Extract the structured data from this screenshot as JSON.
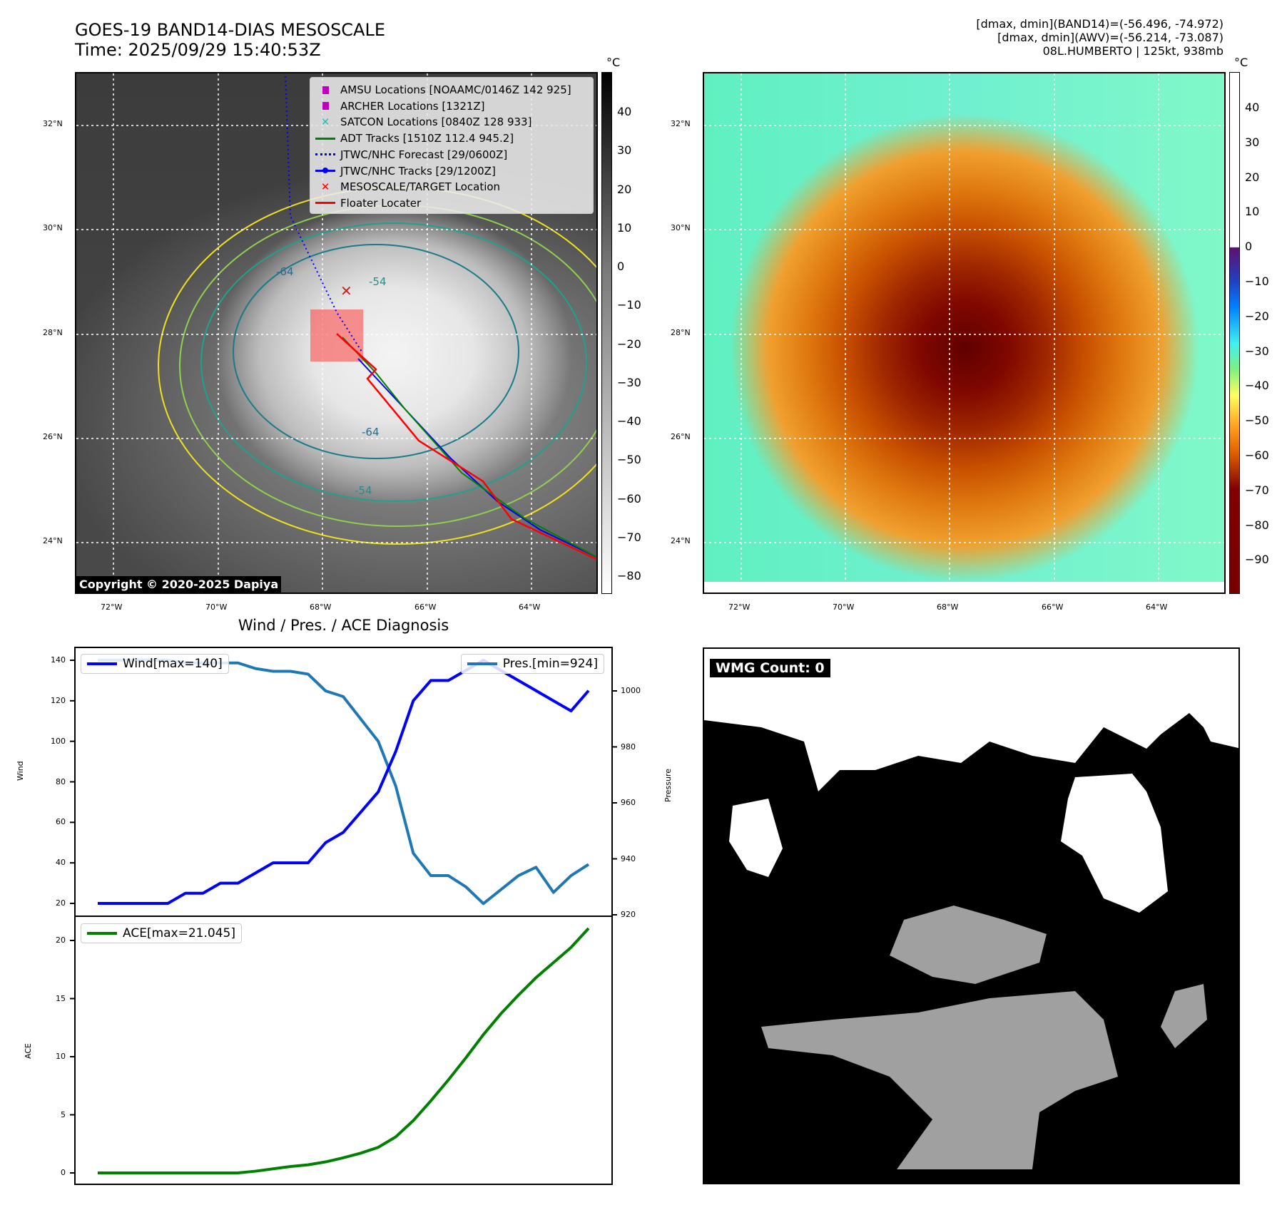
{
  "header": {
    "title_line1": "GOES-19 BAND14-DIAS MESOSCALE",
    "title_line2": "Time: 2025/09/29 15:40:53Z",
    "info_line1": "[dmax, dmin](BAND14)=(-56.496, -74.972)",
    "info_line2": "[dmax, dmin](AWV)=(-56.214, -73.087)",
    "info_line3": "08L.HUMBERTO | 125kt, 938mb"
  },
  "maps": {
    "lat_labels": [
      "32°N",
      "30°N",
      "28°N",
      "26°N",
      "24°N"
    ],
    "lon_labels": [
      "72°W",
      "70°W",
      "68°W",
      "66°W",
      "64°W"
    ],
    "copyright": "Copyright © 2020-2025 Dapiya",
    "contour_labels": [
      "-64",
      "-54",
      "-64",
      "-54"
    ]
  },
  "legend": [
    {
      "label": "AMSU Locations [NOAAMC/0146Z 142 925]",
      "symbol": "square",
      "color": "#c000c0"
    },
    {
      "label": "ARCHER Locations [1321Z]",
      "symbol": "square",
      "color": "#c000c0"
    },
    {
      "label": "SATCON Locations [0840Z 128 933]",
      "symbol": "x",
      "color": "#20c0c0"
    },
    {
      "label": "ADT Tracks [1510Z 112.4 945.2]",
      "symbol": "line",
      "color": "#008000"
    },
    {
      "label": "JTWC/NHC Forecast [29/0600Z]",
      "symbol": "dotted",
      "color": "#0000ff"
    },
    {
      "label": "JTWC/NHC Tracks [29/1200Z]",
      "symbol": "line-dot",
      "color": "#0000ff"
    },
    {
      "label": "MESOSCALE/TARGET Location",
      "symbol": "x",
      "color": "#ff0000"
    },
    {
      "label": "Floater Locater",
      "symbol": "line",
      "color": "#ff0000"
    }
  ],
  "colorbar_left": {
    "unit": "°C",
    "ticks": [
      "40",
      "30",
      "20",
      "10",
      "0",
      "−10",
      "−20",
      "−30",
      "−40",
      "−50",
      "−60",
      "−70",
      "−80"
    ]
  },
  "colorbar_right": {
    "unit": "°C",
    "ticks": [
      "40",
      "30",
      "20",
      "10",
      "0",
      "−10",
      "−20",
      "−30",
      "−40",
      "−50",
      "−60",
      "−70",
      "−80",
      "−90"
    ]
  },
  "wmg": {
    "label": "WMG Count: 0"
  },
  "chart_data": [
    {
      "type": "line",
      "title": "Wind / Pres. / ACE Diagnosis",
      "ylabel": "Wind",
      "y2label": "Pressure",
      "ylim": [
        16,
        144
      ],
      "y2lim": [
        919,
        1016
      ],
      "yticks": [
        "140",
        "120",
        "100",
        "80",
        "60",
        "40",
        "20"
      ],
      "y2ticks": [
        "1000",
        "980",
        "960",
        "940",
        "920"
      ],
      "series": [
        {
          "name": "Wind[max=140]",
          "color": "#0000ff",
          "axis": "left",
          "values": [
            20,
            20,
            20,
            20,
            20,
            25,
            25,
            30,
            30,
            35,
            40,
            40,
            40,
            50,
            55,
            65,
            75,
            95,
            120,
            130,
            130,
            135,
            140,
            135,
            130,
            125,
            120,
            115,
            125
          ]
        },
        {
          "name": "Pres.[min=924]",
          "color": "#1f77b4",
          "axis": "right",
          "values": [
            1011,
            1011,
            1011,
            1011,
            1011,
            1010,
            1010,
            1010,
            1010,
            1008,
            1007,
            1007,
            1006,
            1000,
            998,
            990,
            982,
            966,
            942,
            934,
            934,
            930,
            924,
            929,
            934,
            937,
            928,
            934,
            938
          ]
        }
      ]
    },
    {
      "type": "line",
      "ylabel": "ACE",
      "ylim": [
        -1,
        22
      ],
      "yticks": [
        "20",
        "15",
        "10",
        "5",
        "0"
      ],
      "series": [
        {
          "name": "ACE[max=21.045]",
          "color": "#008000",
          "values": [
            0,
            0,
            0,
            0,
            0,
            0,
            0,
            0,
            0,
            0.15,
            0.35,
            0.55,
            0.7,
            0.95,
            1.3,
            1.7,
            2.2,
            3.1,
            4.5,
            6.2,
            8.0,
            9.9,
            11.9,
            13.7,
            15.3,
            16.8,
            18.1,
            19.4,
            21.045
          ]
        }
      ]
    }
  ]
}
